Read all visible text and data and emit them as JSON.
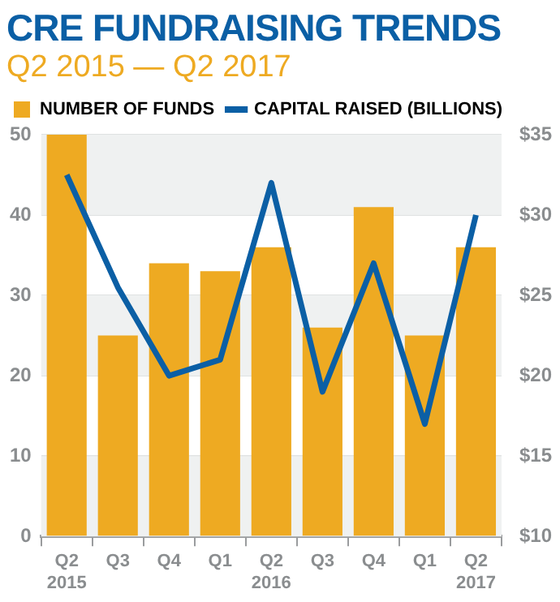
{
  "chart_data": {
    "type": "bar",
    "title": "CRE FUNDRAISING TRENDS",
    "subtitle": "Q2 2015 — Q2 2017",
    "categories": [
      "Q2\n2015",
      "Q3",
      "Q4",
      "Q1",
      "Q2\n2016",
      "Q3",
      "Q4",
      "Q1",
      "Q2\n2017"
    ],
    "series": [
      {
        "name": "NUMBER OF FUNDS",
        "color": "#eeaa22",
        "values": [
          50,
          25,
          34,
          33,
          36,
          26,
          41,
          25,
          36
        ]
      },
      {
        "name": "CAPITAL RAISED (BILLIONS)",
        "type": "line",
        "axis": "y2",
        "color": "#0b5fa5",
        "values": [
          32.5,
          25.5,
          20,
          21,
          32,
          19,
          27,
          17,
          30
        ]
      }
    ],
    "ylim": [
      0,
      50
    ],
    "yticks": [
      0,
      10,
      20,
      30,
      40,
      50
    ],
    "y2lim": [
      10,
      35
    ],
    "y2ticks": [
      {
        "value": 10,
        "label": "$10"
      },
      {
        "value": 15,
        "label": "$15"
      },
      {
        "value": 20,
        "label": "$20"
      },
      {
        "value": 25,
        "label": "$25"
      },
      {
        "value": 30,
        "label": "$30"
      },
      {
        "value": 35,
        "label": "$35"
      }
    ],
    "grid": "y",
    "legend": "top left",
    "marker": "none",
    "line_style": "solid"
  }
}
